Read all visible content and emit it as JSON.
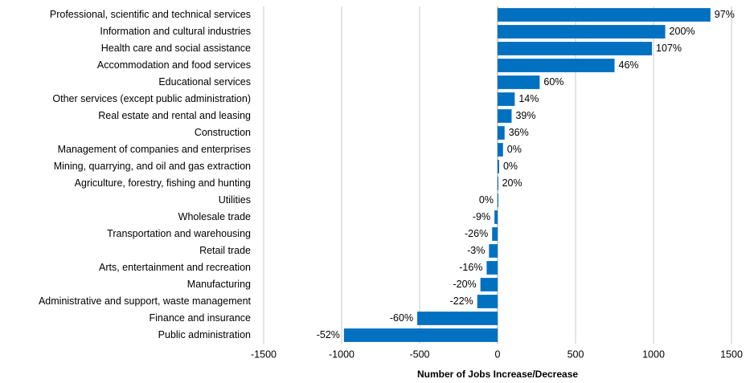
{
  "chart_data": {
    "type": "barh",
    "categories": [
      "Professional, scientific and technical services",
      "Information and cultural industries",
      "Health care and social assistance",
      "Accommodation and food services",
      "Educational services",
      "Other services (except public administration)",
      "Real estate and rental and leasing",
      "Construction",
      "Management of companies and enterprises",
      "Mining, quarrying, and oil and gas extraction",
      "Agriculture, forestry, fishing and hunting",
      "Utilities",
      "Wholesale trade",
      "Transportation and warehousing",
      "Retail trade",
      "Arts, entertainment and recreation",
      "Manufacturing",
      "Administrative and support, waste management",
      "Finance and insurance",
      "Public administration"
    ],
    "values": [
      1365,
      1075,
      990,
      750,
      270,
      110,
      90,
      45,
      35,
      10,
      3,
      0,
      -20,
      -35,
      -55,
      -70,
      -110,
      -130,
      -515,
      -985
    ],
    "bar_labels": [
      "97%",
      "200%",
      "107%",
      "46%",
      "60%",
      "14%",
      "39%",
      "36%",
      "0%",
      "0%",
      "20%",
      "0%",
      "-9%",
      "-26%",
      "-3%",
      "-16%",
      "-20%",
      "-22%",
      "-60%",
      "-52%"
    ],
    "color": "#0070c0",
    "xlabel": "Number of Jobs Increase/Decrease",
    "xlim": [
      -1500,
      1500
    ],
    "xticks": [
      -1500,
      -1000,
      -500,
      0,
      500,
      1000,
      1500
    ],
    "grid": true
  }
}
